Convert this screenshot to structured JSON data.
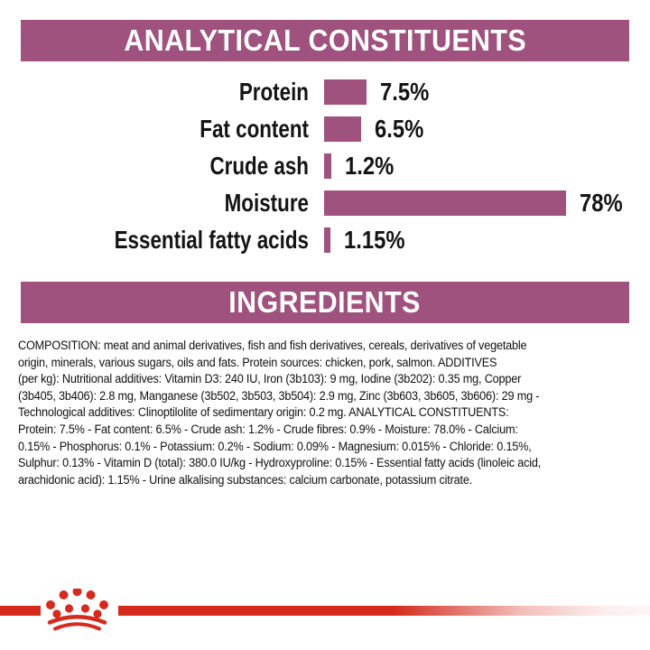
{
  "page": {
    "background": "#ffffff",
    "accent_color": "#a0527e",
    "brand_red": "#d52b1e"
  },
  "sections": {
    "analytical": {
      "title": "ANALYTICAL CONSTITUENTS"
    },
    "ingredients": {
      "title": "INGREDIENTS"
    }
  },
  "chart_data": {
    "type": "bar",
    "orientation": "horizontal",
    "title": "ANALYTICAL CONSTITUENTS",
    "categories": [
      "Protein",
      "Fat content",
      "Crude ash",
      "Moisture",
      "Essential fatty acids"
    ],
    "values": [
      7.5,
      6.5,
      1.2,
      78,
      1.15
    ],
    "value_labels": [
      "7.5%",
      "6.5%",
      "1.2%",
      "78%",
      "1.15%"
    ],
    "unit": "%",
    "bar_color": "#a0527e",
    "xlim": [
      0,
      80
    ],
    "grid": false,
    "legend": false,
    "value_label_position": "right-of-bar"
  },
  "ingredients_text": {
    "lines": [
      "COMPOSITION: meat and animal derivatives, fish and fish derivatives, cereals, derivatives of vegetable",
      "origin, minerals, various sugars, oils and fats. Protein sources: chicken, pork, salmon. ADDITIVES",
      "(per kg): Nutritional additives: Vitamin D3: 240 IU, Iron (3b103): 9 mg, Iodine (3b202): 0.35 mg, Copper",
      "(3b405, 3b406): 2.8 mg, Manganese (3b502, 3b503, 3b504): 2.9 mg, Zinc (3b603, 3b605, 3b606): 29 mg -",
      "Technological additives: Clinoptilolite of sedimentary origin: 0.2 mg. ANALYTICAL CONSTITUENTS:",
      "Protein: 7.5% - Fat content: 6.5% - Crude ash: 1.2% - Crude fibres: 0.9% - Moisture: 78.0% - Calcium:",
      "0.15% - Phosphorus: 0.1% - Potassium: 0.2% - Sodium: 0.09% - Magnesium: 0.015% - Chloride: 0.15%,",
      "Sulphur: 0.13% - Vitamin D (total): 380.0 IU/kg - Hydroxyproline: 0.15% - Essential fatty acids (linoleic acid,",
      "arachidonic acid): 1.15% - Urine alkalising substances: calcium carbonate, potassium citrate."
    ]
  },
  "footer": {
    "logo": "royal-canin-crown-icon",
    "stripe_color": "#d52b1e"
  }
}
